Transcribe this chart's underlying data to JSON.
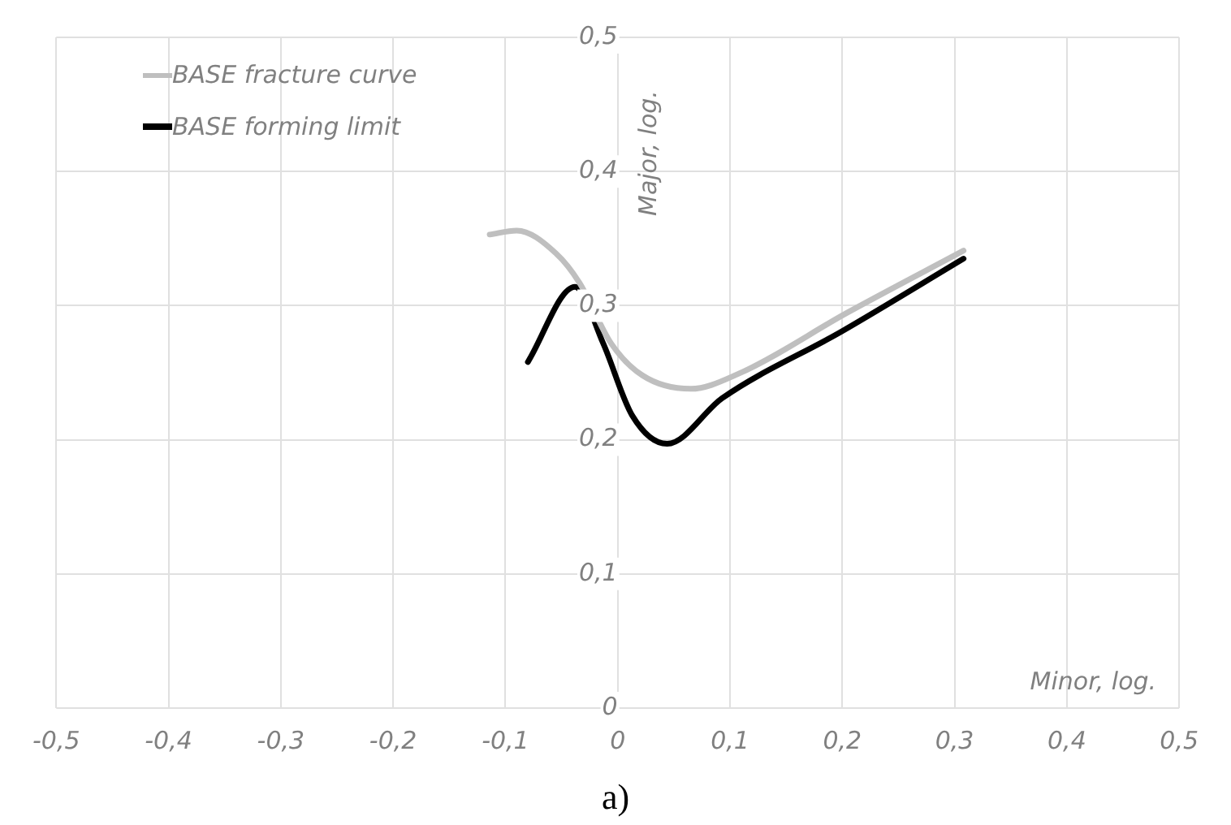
{
  "chart_data": {
    "type": "line",
    "xlabel": "Minor, log.",
    "ylabel": "Major, log.",
    "annotations": [
      "a)"
    ],
    "xlim": [
      -0.5,
      0.5
    ],
    "xticks": [
      {
        "value": -0.5,
        "label": "-0,5"
      },
      {
        "value": -0.4,
        "label": "-0,4"
      },
      {
        "value": -0.3,
        "label": "-0,3"
      },
      {
        "value": -0.2,
        "label": "-0,2"
      },
      {
        "value": -0.1,
        "label": "-0,1"
      },
      {
        "value": 0,
        "label": "0"
      },
      {
        "value": 0.1,
        "label": "0,1"
      },
      {
        "value": 0.2,
        "label": "0,2"
      },
      {
        "value": 0.3,
        "label": "0,3"
      },
      {
        "value": 0.4,
        "label": "0,4"
      },
      {
        "value": 0.5,
        "label": "0,5"
      }
    ],
    "ylim": [
      0,
      0.5
    ],
    "yticks": [
      {
        "value": 0,
        "label": "0"
      },
      {
        "value": 0.1,
        "label": "0,1"
      },
      {
        "value": 0.2,
        "label": "0,2"
      },
      {
        "value": 0.3,
        "label": "0,3"
      },
      {
        "value": 0.4,
        "label": "0,4"
      },
      {
        "value": 0.5,
        "label": "0,5"
      }
    ],
    "grid": true,
    "legend": "top left",
    "marker": "none",
    "line_style": "solid",
    "series": [
      {
        "name": "BASE fracture curve",
        "color": "#bfbfbf",
        "x": [
          -0.114,
          -0.09,
          -0.055,
          -0.034,
          -0.006,
          0.022,
          0.065,
          0.107,
          0.205,
          0.308
        ],
        "values": [
          0.353,
          0.356,
          0.339,
          0.317,
          0.272,
          0.248,
          0.238,
          0.249,
          0.295,
          0.341
        ]
      },
      {
        "name": "BASE forming limit",
        "color": "#000000",
        "x": [
          -0.08,
          -0.038,
          -0.013,
          0.013,
          0.044,
          0.093,
          0.2,
          0.308
        ],
        "values": [
          0.258,
          0.314,
          0.272,
          0.218,
          0.197,
          0.231,
          0.281,
          0.335
        ]
      }
    ]
  }
}
